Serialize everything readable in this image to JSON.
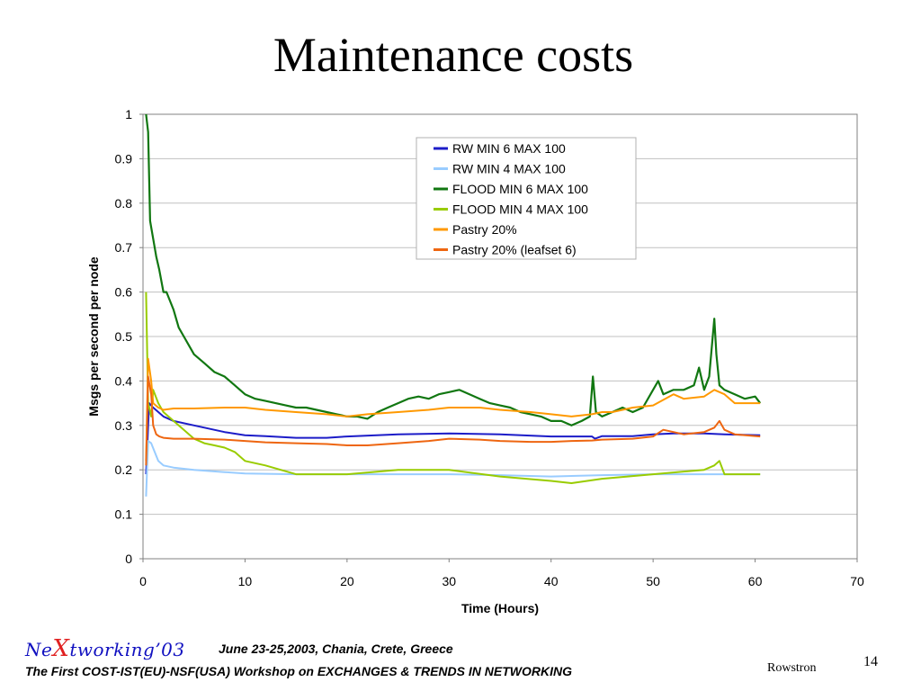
{
  "slide": {
    "title": "Maintenance costs",
    "footer": {
      "logo_prefix": "Ne",
      "logo_x": "X",
      "logo_suffix": "tworking’03",
      "date": "June 23-25,2003, Chania, Crete, Greece",
      "subtitle": "The First COST-IST(EU)-NSF(USA) Workshop on EXCHANGES & TRENDS IN NETWORKING",
      "author": "Rowstron",
      "page": "14"
    },
    "colors": {
      "logo_text": "#1010c0",
      "logo_x": "#e02020"
    }
  },
  "chart_data": {
    "type": "line",
    "title": "",
    "xlabel": "Time (Hours)",
    "ylabel": "Msgs per second per node",
    "xlim": [
      0,
      70
    ],
    "ylim": [
      0,
      1
    ],
    "xticks": [
      0,
      10,
      20,
      30,
      40,
      50,
      60,
      70
    ],
    "yticks": [
      0,
      0.1,
      0.2,
      0.3,
      0.4,
      0.5,
      0.6,
      0.7,
      0.8,
      0.9,
      1
    ],
    "grid": "horizontal",
    "legend_position": "top-center",
    "series": [
      {
        "name": "RW MIN 6 MAX 100",
        "color": "#1c1cc8",
        "x": [
          0.3,
          0.6,
          1,
          2,
          3,
          5,
          8,
          10,
          12,
          15,
          18,
          20,
          25,
          30,
          35,
          40,
          44,
          44.3,
          45,
          48,
          50,
          52,
          55,
          57,
          60.5
        ],
        "y": [
          0.19,
          0.35,
          0.34,
          0.32,
          0.31,
          0.3,
          0.285,
          0.278,
          0.276,
          0.272,
          0.272,
          0.275,
          0.28,
          0.282,
          0.28,
          0.275,
          0.275,
          0.27,
          0.276,
          0.276,
          0.28,
          0.282,
          0.282,
          0.28,
          0.278
        ]
      },
      {
        "name": "RW MIN 4 MAX 100",
        "color": "#99ccff",
        "x": [
          0.3,
          0.5,
          0.8,
          1.5,
          2,
          3,
          5,
          8,
          10,
          15,
          20,
          25,
          30,
          35,
          40,
          45,
          50,
          55,
          60.5
        ],
        "y": [
          0.14,
          0.265,
          0.26,
          0.22,
          0.21,
          0.205,
          0.2,
          0.195,
          0.192,
          0.19,
          0.19,
          0.19,
          0.19,
          0.188,
          0.185,
          0.188,
          0.19,
          0.19,
          0.19
        ]
      },
      {
        "name": "FLOOD MIN 6 MAX 100",
        "color": "#117711",
        "x": [
          0.3,
          0.5,
          0.7,
          1,
          1.3,
          1.6,
          2,
          2.3,
          3,
          3.5,
          4,
          5,
          6,
          7,
          8,
          9,
          10,
          11,
          12,
          13,
          14,
          15,
          16,
          17,
          18,
          19,
          20,
          21,
          22,
          23,
          24,
          25,
          26,
          27,
          28,
          29,
          30,
          31,
          32,
          33,
          34,
          35,
          36,
          37,
          38,
          39,
          40,
          41,
          42,
          43,
          43.8,
          44.1,
          44.4,
          45,
          46,
          47,
          48,
          49,
          50,
          50.5,
          51,
          52,
          53,
          54,
          54.5,
          55,
          55.5,
          56,
          56.2,
          56.5,
          57,
          58,
          59,
          60,
          60.5
        ],
        "y": [
          1.0,
          0.96,
          0.76,
          0.72,
          0.68,
          0.65,
          0.6,
          0.6,
          0.56,
          0.52,
          0.5,
          0.46,
          0.44,
          0.42,
          0.41,
          0.39,
          0.37,
          0.36,
          0.355,
          0.35,
          0.345,
          0.34,
          0.34,
          0.335,
          0.33,
          0.325,
          0.32,
          0.32,
          0.315,
          0.33,
          0.34,
          0.35,
          0.36,
          0.365,
          0.36,
          0.37,
          0.375,
          0.38,
          0.37,
          0.36,
          0.35,
          0.345,
          0.34,
          0.33,
          0.325,
          0.32,
          0.31,
          0.31,
          0.3,
          0.31,
          0.32,
          0.41,
          0.33,
          0.32,
          0.33,
          0.34,
          0.33,
          0.34,
          0.38,
          0.4,
          0.37,
          0.38,
          0.38,
          0.39,
          0.43,
          0.38,
          0.41,
          0.54,
          0.46,
          0.39,
          0.38,
          0.37,
          0.36,
          0.365,
          0.35
        ]
      },
      {
        "name": "FLOOD MIN 4 MAX 100",
        "color": "#99cc00",
        "x": [
          0.3,
          0.5,
          0.8,
          1,
          1.5,
          2,
          3,
          4,
          5,
          6,
          7,
          8,
          9,
          10,
          12,
          15,
          18,
          20,
          25,
          30,
          35,
          40,
          42,
          45,
          50,
          55,
          56,
          56.5,
          57,
          60.5
        ],
        "y": [
          0.6,
          0.35,
          0.32,
          0.38,
          0.35,
          0.33,
          0.31,
          0.29,
          0.27,
          0.26,
          0.255,
          0.25,
          0.24,
          0.22,
          0.21,
          0.19,
          0.19,
          0.19,
          0.2,
          0.2,
          0.185,
          0.175,
          0.17,
          0.18,
          0.19,
          0.2,
          0.21,
          0.22,
          0.19,
          0.19
        ]
      },
      {
        "name": "Pastry 20%",
        "color": "#ff9900",
        "x": [
          0.3,
          0.5,
          0.8,
          1,
          1.5,
          2,
          3,
          5,
          8,
          10,
          12,
          15,
          18,
          20,
          22,
          25,
          28,
          30,
          33,
          35,
          38,
          40,
          42,
          44,
          45,
          46,
          48,
          50,
          52,
          53,
          55,
          56,
          57,
          58,
          60.5
        ],
        "y": [
          0.22,
          0.45,
          0.4,
          0.35,
          0.34,
          0.335,
          0.338,
          0.338,
          0.34,
          0.34,
          0.335,
          0.33,
          0.325,
          0.32,
          0.325,
          0.33,
          0.335,
          0.34,
          0.34,
          0.335,
          0.33,
          0.325,
          0.32,
          0.325,
          0.33,
          0.33,
          0.34,
          0.345,
          0.37,
          0.36,
          0.365,
          0.38,
          0.37,
          0.35,
          0.35
        ]
      },
      {
        "name": "Pastry 20% (leafset 6)",
        "color": "#ee6611",
        "x": [
          0.3,
          0.5,
          0.8,
          1,
          1.3,
          1.6,
          2,
          3,
          5,
          8,
          10,
          12,
          15,
          18,
          20,
          22,
          25,
          28,
          30,
          33,
          35,
          38,
          40,
          42,
          44,
          45,
          48,
          50,
          51,
          53,
          55,
          56,
          56.5,
          57,
          58,
          60.5
        ],
        "y": [
          0.21,
          0.41,
          0.37,
          0.3,
          0.28,
          0.275,
          0.272,
          0.27,
          0.27,
          0.268,
          0.265,
          0.262,
          0.26,
          0.258,
          0.255,
          0.255,
          0.26,
          0.265,
          0.27,
          0.268,
          0.265,
          0.263,
          0.263,
          0.265,
          0.266,
          0.268,
          0.27,
          0.275,
          0.29,
          0.28,
          0.285,
          0.295,
          0.31,
          0.29,
          0.28,
          0.275
        ]
      }
    ]
  }
}
